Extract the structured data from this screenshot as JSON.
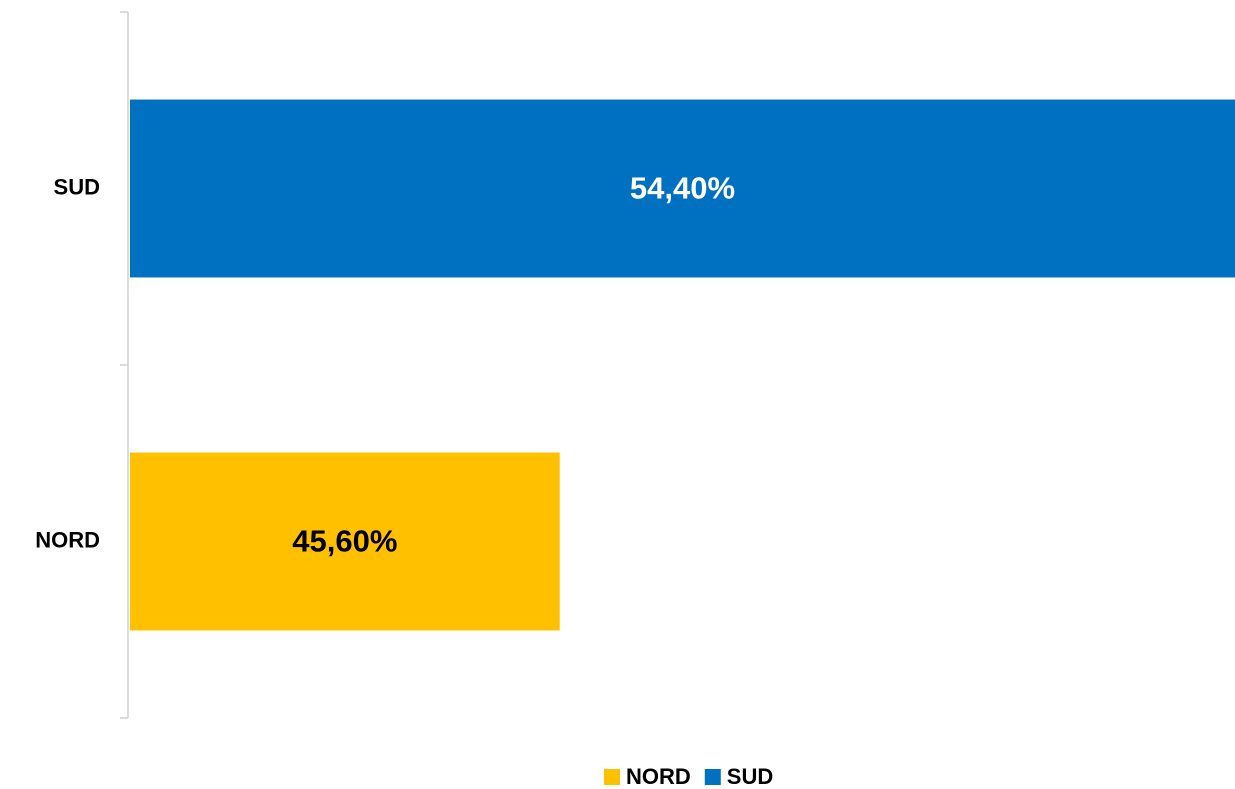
{
  "chart_data": {
    "type": "bar",
    "orientation": "horizontal",
    "categories": [
      "NORD",
      "SUD"
    ],
    "series": [
      {
        "name": "NORD",
        "color": "#FFC000",
        "values": [
          45.6,
          null
        ],
        "value_labels": [
          "45,60%",
          null
        ],
        "label_color": "#000000"
      },
      {
        "name": "SUD",
        "color": "#0070C0",
        "values": [
          null,
          54.4
        ],
        "value_labels": [
          null,
          "54,40%"
        ],
        "label_color": "#FFFFFF"
      }
    ],
    "xlim": [
      40,
      54.4
    ],
    "grid": false,
    "legend": "bottom"
  }
}
